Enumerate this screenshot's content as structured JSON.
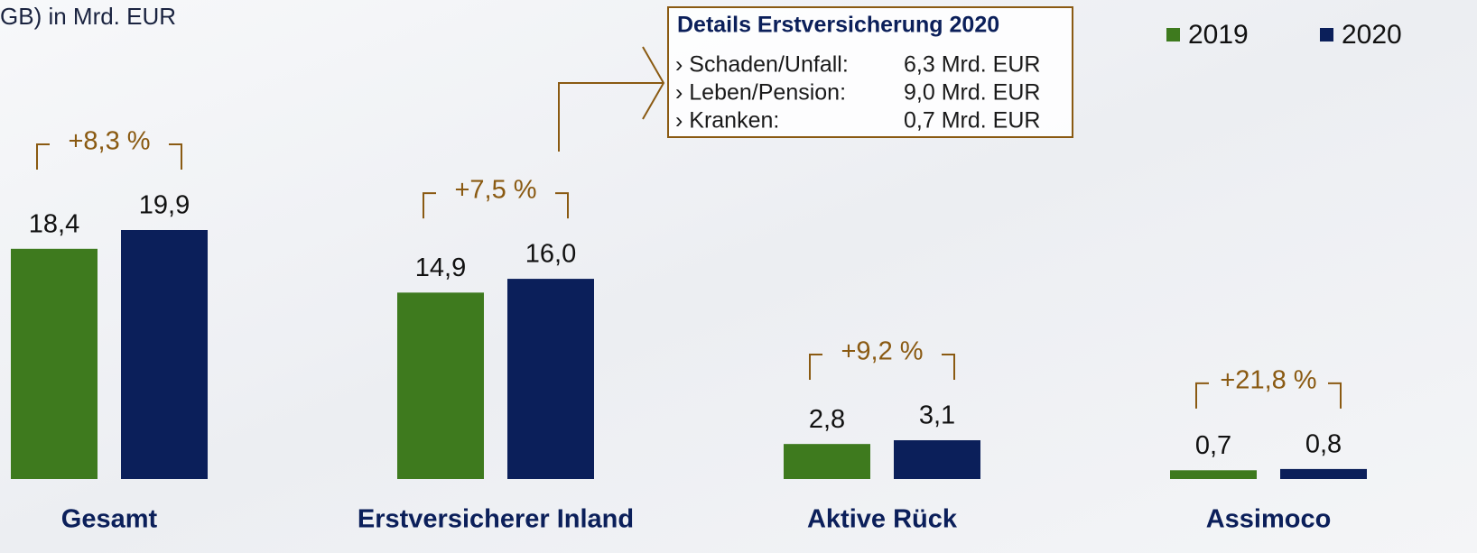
{
  "chart_data": {
    "type": "bar",
    "title": "GB) in Mrd. EUR",
    "categories": [
      "Gesamt",
      "Erstversicherer Inland",
      "Aktive Rück",
      "Assimoco"
    ],
    "series": [
      {
        "name": "2019",
        "color": "#3e7a1e",
        "values": [
          18.4,
          14.9,
          2.8,
          0.7
        ],
        "value_labels": [
          "18,4",
          "14,9",
          "2,8",
          "0,7"
        ]
      },
      {
        "name": "2020",
        "color": "#0b1f5a",
        "values": [
          19.9,
          16.0,
          3.1,
          0.8
        ],
        "value_labels": [
          "19,9",
          "16,0",
          "3,1",
          "0,8"
        ]
      }
    ],
    "annotations": [
      "+8,3 %",
      "+7,5 %",
      "+9,2 %",
      "+21,8 %"
    ],
    "legend": "top-right",
    "details": {
      "title": "Details Erstversicherung 2020",
      "rows": [
        {
          "label": "› Schaden/Unfall:",
          "value": "6,3 Mrd. EUR"
        },
        {
          "label": "› Leben/Pension:",
          "value": "9,0 Mrd. EUR"
        },
        {
          "label": "› Kranken:",
          "value": "0,7 Mrd. EUR"
        }
      ]
    }
  }
}
